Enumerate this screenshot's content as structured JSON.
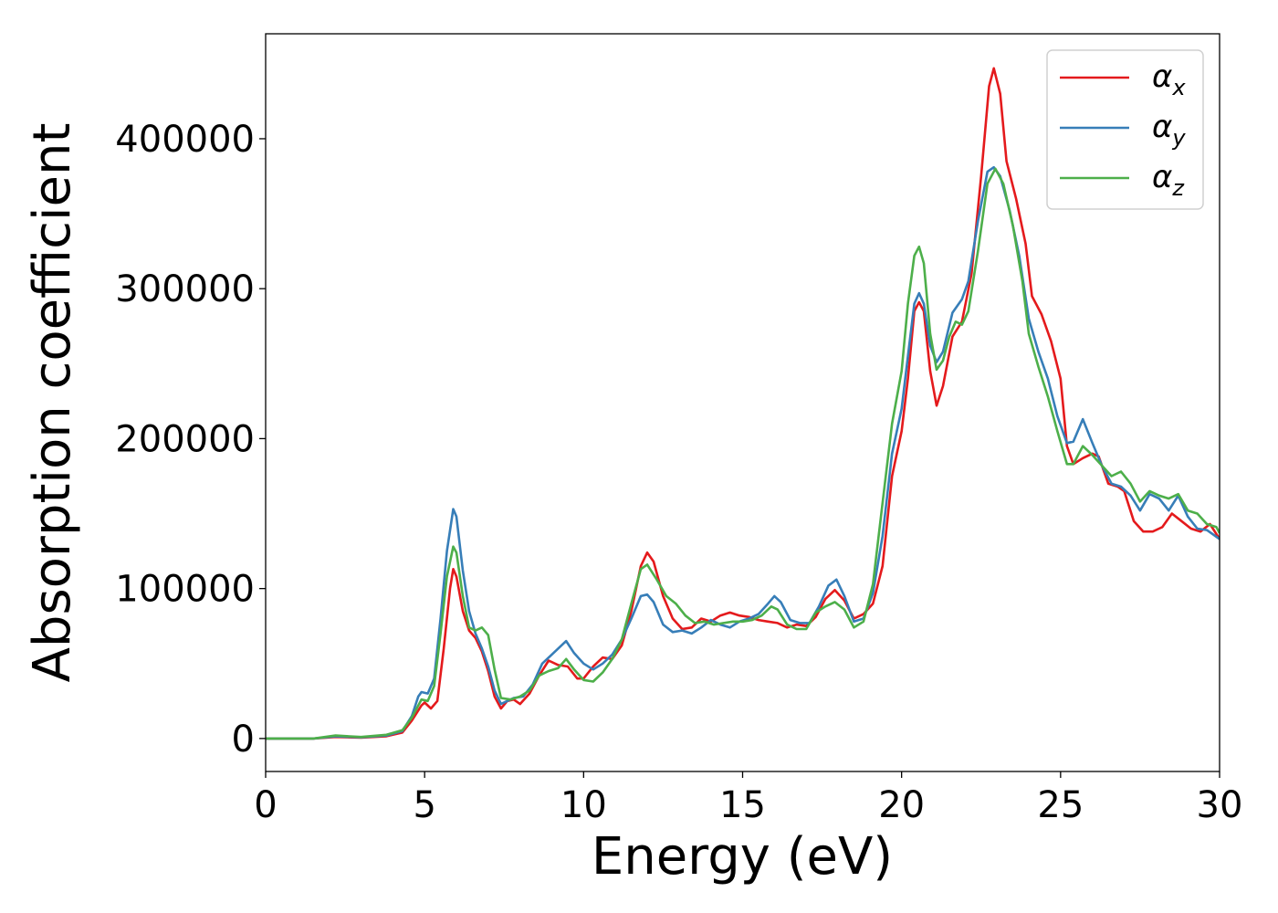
{
  "chart_data": {
    "type": "line",
    "title": "",
    "xlabel": "Energy (eV)",
    "ylabel": "Absorption coefficient",
    "xlim": [
      0,
      30
    ],
    "ylim": [
      -22000,
      470000
    ],
    "xticks": [
      0,
      5,
      10,
      15,
      20,
      25,
      30
    ],
    "yticks": [
      0,
      100000,
      200000,
      300000,
      400000
    ],
    "grid": false,
    "legend_position": "top-right",
    "series": [
      {
        "name": "αx",
        "label_base": "α",
        "label_sub": "x",
        "color": "#e41a1c",
        "points": [
          [
            0,
            0
          ],
          [
            1.5,
            0
          ],
          [
            2.2,
            1000
          ],
          [
            3,
            500
          ],
          [
            3.8,
            1500
          ],
          [
            4.3,
            4000
          ],
          [
            4.6,
            12000
          ],
          [
            4.9,
            22000
          ],
          [
            5.0,
            24000
          ],
          [
            5.2,
            20000
          ],
          [
            5.4,
            25000
          ],
          [
            5.6,
            60000
          ],
          [
            5.8,
            100000
          ],
          [
            5.9,
            113000
          ],
          [
            6.0,
            108000
          ],
          [
            6.2,
            85000
          ],
          [
            6.4,
            72000
          ],
          [
            6.6,
            67000
          ],
          [
            6.8,
            58000
          ],
          [
            7.0,
            45000
          ],
          [
            7.2,
            28000
          ],
          [
            7.4,
            20000
          ],
          [
            7.6,
            25000
          ],
          [
            7.8,
            26000
          ],
          [
            8.0,
            23000
          ],
          [
            8.3,
            30000
          ],
          [
            8.6,
            42000
          ],
          [
            8.9,
            52000
          ],
          [
            9.2,
            49000
          ],
          [
            9.5,
            48000
          ],
          [
            9.8,
            40000
          ],
          [
            10.0,
            40000
          ],
          [
            10.3,
            48000
          ],
          [
            10.6,
            54000
          ],
          [
            10.9,
            53000
          ],
          [
            11.2,
            62000
          ],
          [
            11.5,
            85000
          ],
          [
            11.8,
            115000
          ],
          [
            12.0,
            124000
          ],
          [
            12.2,
            118000
          ],
          [
            12.5,
            95000
          ],
          [
            12.8,
            80000
          ],
          [
            13.1,
            73000
          ],
          [
            13.4,
            74000
          ],
          [
            13.7,
            80000
          ],
          [
            14.0,
            78000
          ],
          [
            14.3,
            82000
          ],
          [
            14.6,
            84000
          ],
          [
            14.9,
            82000
          ],
          [
            15.2,
            81000
          ],
          [
            15.5,
            79000
          ],
          [
            15.8,
            78000
          ],
          [
            16.1,
            77000
          ],
          [
            16.4,
            74000
          ],
          [
            16.7,
            76000
          ],
          [
            17.0,
            75000
          ],
          [
            17.3,
            81000
          ],
          [
            17.6,
            93000
          ],
          [
            17.9,
            99000
          ],
          [
            18.2,
            92000
          ],
          [
            18.5,
            80000
          ],
          [
            18.8,
            83000
          ],
          [
            19.1,
            90000
          ],
          [
            19.4,
            115000
          ],
          [
            19.7,
            175000
          ],
          [
            20.0,
            205000
          ],
          [
            20.2,
            240000
          ],
          [
            20.4,
            285000
          ],
          [
            20.55,
            291000
          ],
          [
            20.7,
            285000
          ],
          [
            20.9,
            245000
          ],
          [
            21.1,
            222000
          ],
          [
            21.3,
            235000
          ],
          [
            21.6,
            268000
          ],
          [
            21.9,
            278000
          ],
          [
            22.2,
            310000
          ],
          [
            22.5,
            375000
          ],
          [
            22.75,
            435000
          ],
          [
            22.9,
            447000
          ],
          [
            23.1,
            430000
          ],
          [
            23.3,
            385000
          ],
          [
            23.6,
            360000
          ],
          [
            23.9,
            330000
          ],
          [
            24.1,
            295000
          ],
          [
            24.4,
            283000
          ],
          [
            24.7,
            265000
          ],
          [
            25.0,
            240000
          ],
          [
            25.2,
            195000
          ],
          [
            25.4,
            183000
          ],
          [
            25.7,
            187000
          ],
          [
            26.0,
            190000
          ],
          [
            26.2,
            188000
          ],
          [
            26.5,
            170000
          ],
          [
            26.8,
            168000
          ],
          [
            27.0,
            165000
          ],
          [
            27.3,
            145000
          ],
          [
            27.6,
            138000
          ],
          [
            27.9,
            138000
          ],
          [
            28.2,
            141000
          ],
          [
            28.5,
            150000
          ],
          [
            28.8,
            145000
          ],
          [
            29.1,
            140000
          ],
          [
            29.4,
            138000
          ],
          [
            29.7,
            143000
          ],
          [
            30,
            133000
          ]
        ]
      },
      {
        "name": "αy",
        "label_base": "α",
        "label_sub": "y",
        "color": "#377eb8",
        "points": [
          [
            0,
            0
          ],
          [
            1.5,
            0
          ],
          [
            2.2,
            1500
          ],
          [
            3,
            800
          ],
          [
            3.8,
            2000
          ],
          [
            4.3,
            5000
          ],
          [
            4.6,
            15000
          ],
          [
            4.8,
            28000
          ],
          [
            4.9,
            31000
          ],
          [
            5.1,
            30000
          ],
          [
            5.3,
            40000
          ],
          [
            5.5,
            80000
          ],
          [
            5.7,
            125000
          ],
          [
            5.9,
            153000
          ],
          [
            6.0,
            148000
          ],
          [
            6.2,
            112000
          ],
          [
            6.4,
            85000
          ],
          [
            6.6,
            70000
          ],
          [
            6.8,
            60000
          ],
          [
            7.0,
            48000
          ],
          [
            7.2,
            32000
          ],
          [
            7.4,
            23000
          ],
          [
            7.6,
            25000
          ],
          [
            7.8,
            27000
          ],
          [
            8.1,
            28000
          ],
          [
            8.4,
            36000
          ],
          [
            8.7,
            50000
          ],
          [
            9.0,
            56000
          ],
          [
            9.2,
            60000
          ],
          [
            9.45,
            65000
          ],
          [
            9.7,
            57000
          ],
          [
            10.0,
            50000
          ],
          [
            10.3,
            46000
          ],
          [
            10.6,
            50000
          ],
          [
            10.9,
            56000
          ],
          [
            11.2,
            66000
          ],
          [
            11.5,
            80000
          ],
          [
            11.8,
            95000
          ],
          [
            12.0,
            96000
          ],
          [
            12.2,
            91000
          ],
          [
            12.5,
            76000
          ],
          [
            12.8,
            71000
          ],
          [
            13.1,
            72000
          ],
          [
            13.4,
            70000
          ],
          [
            13.7,
            74000
          ],
          [
            14.0,
            79000
          ],
          [
            14.3,
            76000
          ],
          [
            14.6,
            74000
          ],
          [
            14.9,
            78000
          ],
          [
            15.2,
            80000
          ],
          [
            15.5,
            83000
          ],
          [
            15.8,
            90000
          ],
          [
            16.0,
            95000
          ],
          [
            16.2,
            91000
          ],
          [
            16.5,
            79000
          ],
          [
            16.8,
            77000
          ],
          [
            17.1,
            77000
          ],
          [
            17.4,
            88000
          ],
          [
            17.7,
            102000
          ],
          [
            17.95,
            106000
          ],
          [
            18.2,
            95000
          ],
          [
            18.5,
            78000
          ],
          [
            18.8,
            80000
          ],
          [
            19.1,
            97000
          ],
          [
            19.4,
            135000
          ],
          [
            19.7,
            190000
          ],
          [
            20.0,
            220000
          ],
          [
            20.2,
            255000
          ],
          [
            20.4,
            290000
          ],
          [
            20.55,
            297000
          ],
          [
            20.7,
            290000
          ],
          [
            20.9,
            262000
          ],
          [
            21.1,
            251000
          ],
          [
            21.3,
            258000
          ],
          [
            21.6,
            284000
          ],
          [
            21.9,
            293000
          ],
          [
            22.1,
            305000
          ],
          [
            22.4,
            345000
          ],
          [
            22.7,
            378000
          ],
          [
            22.9,
            381000
          ],
          [
            23.1,
            375000
          ],
          [
            23.4,
            352000
          ],
          [
            23.7,
            322000
          ],
          [
            24.0,
            280000
          ],
          [
            24.3,
            258000
          ],
          [
            24.6,
            240000
          ],
          [
            24.9,
            215000
          ],
          [
            25.2,
            197000
          ],
          [
            25.4,
            198000
          ],
          [
            25.7,
            213000
          ],
          [
            26.0,
            197000
          ],
          [
            26.3,
            182000
          ],
          [
            26.6,
            170000
          ],
          [
            26.9,
            168000
          ],
          [
            27.2,
            162000
          ],
          [
            27.5,
            152000
          ],
          [
            27.8,
            163000
          ],
          [
            28.1,
            160000
          ],
          [
            28.4,
            152000
          ],
          [
            28.7,
            162000
          ],
          [
            29.0,
            148000
          ],
          [
            29.3,
            140000
          ],
          [
            29.6,
            139000
          ],
          [
            30,
            133000
          ]
        ]
      },
      {
        "name": "αz",
        "label_base": "α",
        "label_sub": "z",
        "color": "#4daf4a",
        "points": [
          [
            0,
            0
          ],
          [
            1.5,
            0
          ],
          [
            2.2,
            2000
          ],
          [
            3,
            1000
          ],
          [
            3.8,
            2500
          ],
          [
            4.3,
            5500
          ],
          [
            4.6,
            14000
          ],
          [
            4.9,
            26000
          ],
          [
            5.1,
            25000
          ],
          [
            5.3,
            35000
          ],
          [
            5.5,
            70000
          ],
          [
            5.7,
            108000
          ],
          [
            5.9,
            128000
          ],
          [
            6.0,
            124000
          ],
          [
            6.2,
            95000
          ],
          [
            6.4,
            74000
          ],
          [
            6.6,
            72000
          ],
          [
            6.8,
            74000
          ],
          [
            7.0,
            69000
          ],
          [
            7.2,
            46000
          ],
          [
            7.4,
            27000
          ],
          [
            7.7,
            26000
          ],
          [
            8.0,
            28000
          ],
          [
            8.3,
            32000
          ],
          [
            8.6,
            42000
          ],
          [
            8.9,
            45000
          ],
          [
            9.2,
            47000
          ],
          [
            9.45,
            53000
          ],
          [
            9.7,
            46000
          ],
          [
            10.0,
            39000
          ],
          [
            10.3,
            38000
          ],
          [
            10.6,
            44000
          ],
          [
            10.9,
            53000
          ],
          [
            11.2,
            66000
          ],
          [
            11.5,
            90000
          ],
          [
            11.8,
            113000
          ],
          [
            12.0,
            116000
          ],
          [
            12.3,
            106000
          ],
          [
            12.6,
            95000
          ],
          [
            12.9,
            90000
          ],
          [
            13.2,
            82000
          ],
          [
            13.5,
            77000
          ],
          [
            13.8,
            78000
          ],
          [
            14.1,
            76000
          ],
          [
            14.4,
            77000
          ],
          [
            14.7,
            78000
          ],
          [
            15.0,
            78000
          ],
          [
            15.3,
            79000
          ],
          [
            15.6,
            82000
          ],
          [
            15.9,
            88000
          ],
          [
            16.1,
            86000
          ],
          [
            16.4,
            76000
          ],
          [
            16.7,
            73000
          ],
          [
            17.0,
            73000
          ],
          [
            17.3,
            84000
          ],
          [
            17.6,
            88000
          ],
          [
            17.9,
            91000
          ],
          [
            18.2,
            86000
          ],
          [
            18.5,
            74000
          ],
          [
            18.8,
            78000
          ],
          [
            19.1,
            103000
          ],
          [
            19.4,
            157000
          ],
          [
            19.7,
            210000
          ],
          [
            20.0,
            245000
          ],
          [
            20.2,
            290000
          ],
          [
            20.4,
            322000
          ],
          [
            20.55,
            328000
          ],
          [
            20.7,
            317000
          ],
          [
            20.9,
            270000
          ],
          [
            21.1,
            246000
          ],
          [
            21.3,
            252000
          ],
          [
            21.5,
            268000
          ],
          [
            21.7,
            278000
          ],
          [
            21.9,
            276000
          ],
          [
            22.1,
            285000
          ],
          [
            22.4,
            325000
          ],
          [
            22.7,
            370000
          ],
          [
            22.95,
            380000
          ],
          [
            23.2,
            370000
          ],
          [
            23.5,
            342000
          ],
          [
            23.8,
            305000
          ],
          [
            24.0,
            270000
          ],
          [
            24.3,
            248000
          ],
          [
            24.6,
            228000
          ],
          [
            24.9,
            205000
          ],
          [
            25.2,
            183000
          ],
          [
            25.4,
            183000
          ],
          [
            25.7,
            195000
          ],
          [
            26.0,
            189000
          ],
          [
            26.3,
            182000
          ],
          [
            26.6,
            175000
          ],
          [
            26.9,
            178000
          ],
          [
            27.2,
            170000
          ],
          [
            27.5,
            158000
          ],
          [
            27.8,
            165000
          ],
          [
            28.1,
            162000
          ],
          [
            28.4,
            160000
          ],
          [
            28.7,
            163000
          ],
          [
            29.0,
            152000
          ],
          [
            29.3,
            150000
          ],
          [
            29.6,
            143000
          ],
          [
            29.9,
            141000
          ],
          [
            30,
            137000
          ]
        ]
      }
    ]
  }
}
